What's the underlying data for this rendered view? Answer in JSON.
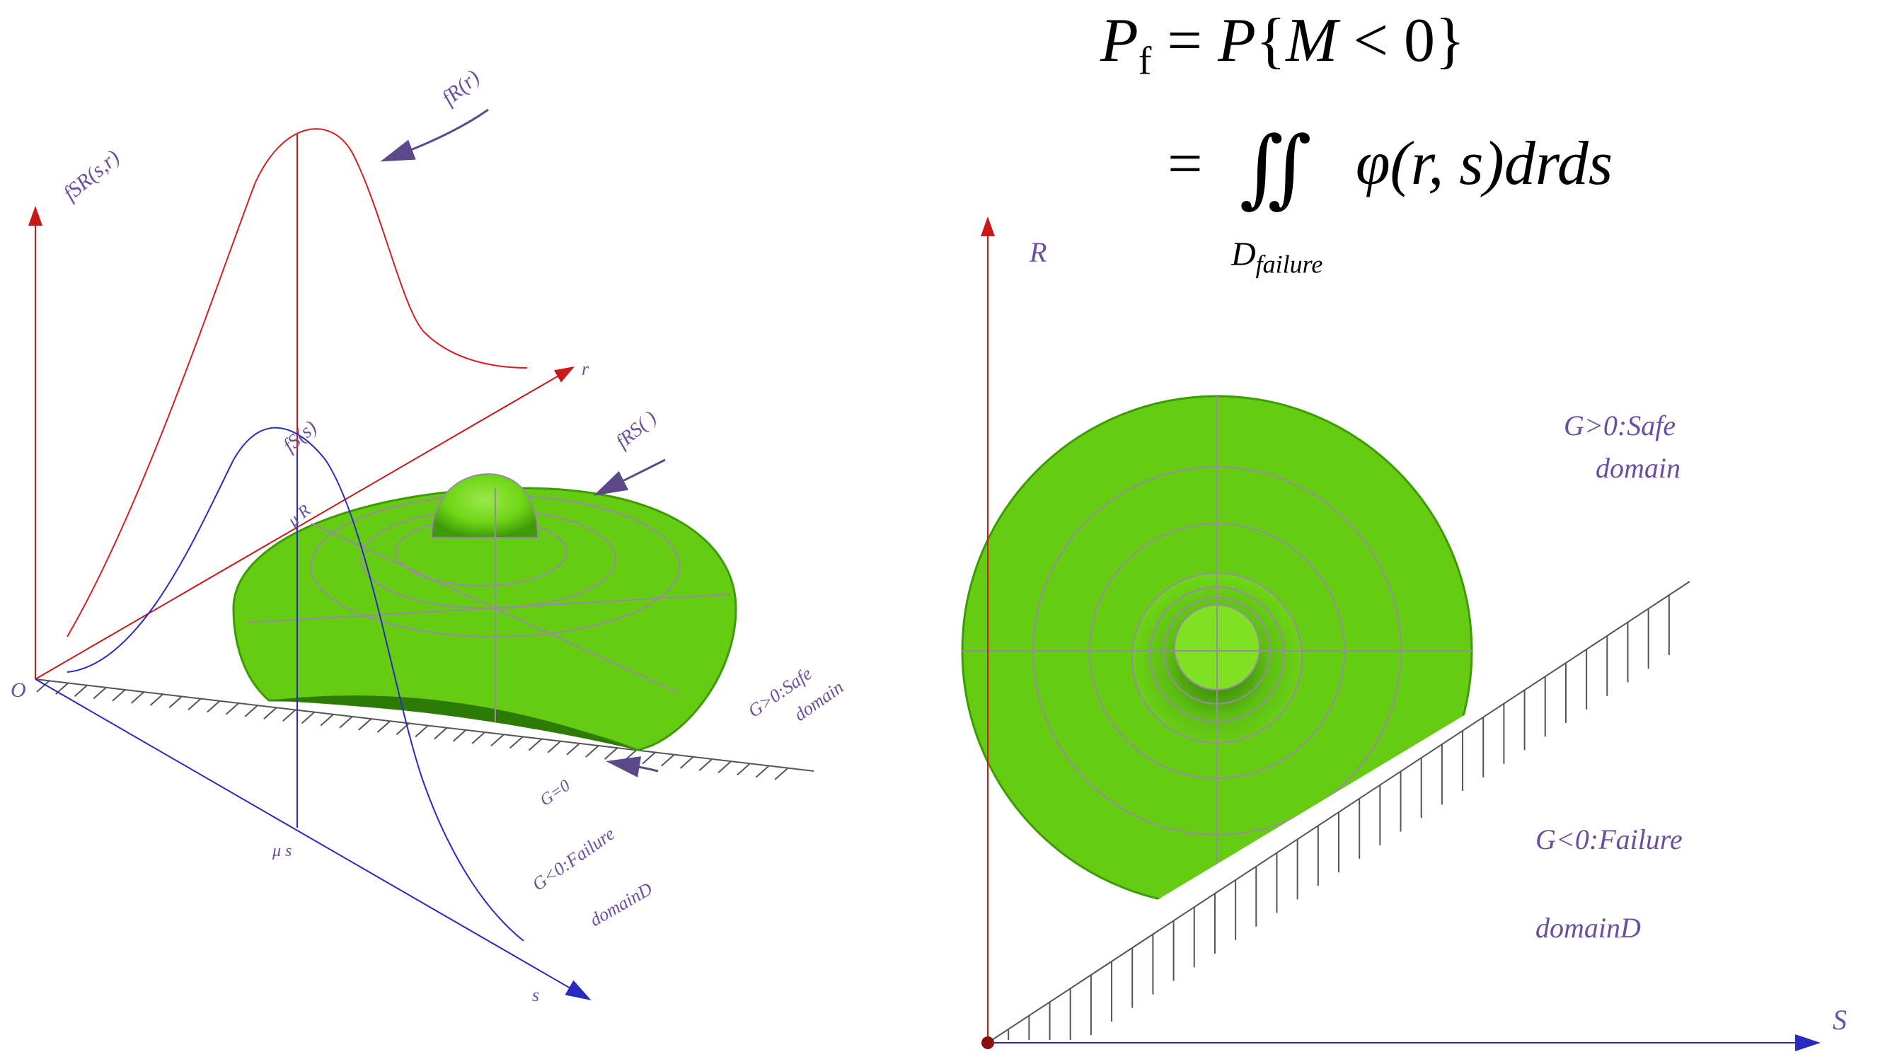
{
  "formula": {
    "line1_lhs": "P",
    "line1_lhs_sub": "f",
    "line1_rhs_P": "P",
    "line1_open": "{",
    "line1_M": "M",
    "line1_lt": "<",
    "line1_zero": "0",
    "line1_close": "}",
    "line2_eq": "=",
    "line2_integral": "∬",
    "line2_integrand": "φ(r, s)drds",
    "line2_domain": "D",
    "line2_domain_sub": "failure",
    "line1_eq": "="
  },
  "left_diagram": {
    "origin_label": "O",
    "r_axis_label": "r",
    "s_axis_label": "s",
    "joint_pdf_label": "fSR(s,r)",
    "fR_label": "fR(r)",
    "fS_label": "fS(s)",
    "fRS_label": "fRS( )",
    "mu_r_label": "μ R",
    "mu_s_label": "μ s",
    "g_zero_label": "G=0",
    "safe_label_line1": "G>0:Safe",
    "safe_label_line2": "domain",
    "failure_label_line1": "G<0:Failure",
    "failure_label_line2": "domainD"
  },
  "right_diagram": {
    "r_axis_label": "R",
    "s_axis_label": "S",
    "safe_label_line1": "G>0:Safe",
    "safe_label_line2": "domain",
    "failure_label_line1": "G<0:Failure",
    "failure_label_line2": "domainD"
  },
  "colors": {
    "surface_green": "#66cc11",
    "surface_green_dark": "#3f9a08",
    "red_axis": "#d42020",
    "blue_axis": "#2a2ac0",
    "label_purple": "#6a4fa0",
    "contour_gray": "#9a8aa8"
  }
}
